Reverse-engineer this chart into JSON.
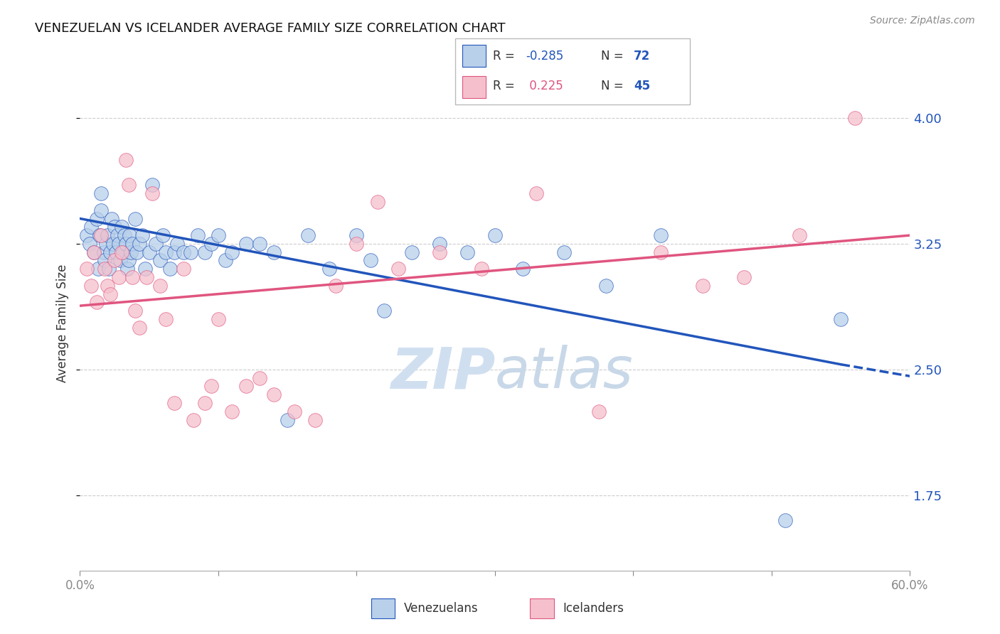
{
  "title": "VENEZUELAN VS ICELANDER AVERAGE FAMILY SIZE CORRELATION CHART",
  "source": "Source: ZipAtlas.com",
  "ylabel": "Average Family Size",
  "yticks": [
    1.75,
    2.5,
    3.25,
    4.0
  ],
  "ytick_labels": [
    "1.75",
    "2.50",
    "3.25",
    "4.00"
  ],
  "xmin": 0.0,
  "xmax": 0.6,
  "ymin": 1.3,
  "ymax": 4.25,
  "legend_blue_r": "-0.285",
  "legend_blue_n": "72",
  "legend_pink_r": "0.225",
  "legend_pink_n": "45",
  "blue_scatter_color": "#b8d0ea",
  "blue_line_color": "#2255bb",
  "pink_scatter_color": "#f5c0cc",
  "pink_line_color": "#e05580",
  "blue_r_color": "#2255bb",
  "pink_r_color": "#e05580",
  "n_color": "#2255bb",
  "ytick_color": "#2255bb",
  "watermark_color": "#d0dff0",
  "venezuelan_x": [
    0.005,
    0.007,
    0.008,
    0.01,
    0.012,
    0.013,
    0.014,
    0.015,
    0.015,
    0.017,
    0.018,
    0.019,
    0.02,
    0.021,
    0.022,
    0.023,
    0.024,
    0.025,
    0.026,
    0.027,
    0.028,
    0.029,
    0.03,
    0.031,
    0.032,
    0.033,
    0.034,
    0.035,
    0.036,
    0.037,
    0.038,
    0.04,
    0.041,
    0.043,
    0.045,
    0.047,
    0.05,
    0.052,
    0.055,
    0.058,
    0.06,
    0.062,
    0.065,
    0.068,
    0.07,
    0.075,
    0.08,
    0.085,
    0.09,
    0.095,
    0.1,
    0.105,
    0.11,
    0.12,
    0.13,
    0.14,
    0.15,
    0.165,
    0.18,
    0.2,
    0.21,
    0.22,
    0.24,
    0.26,
    0.28,
    0.3,
    0.32,
    0.35,
    0.38,
    0.42,
    0.51,
    0.55
  ],
  "venezuelan_y": [
    3.3,
    3.25,
    3.35,
    3.2,
    3.4,
    3.1,
    3.3,
    3.45,
    3.55,
    3.2,
    3.15,
    3.25,
    3.3,
    3.1,
    3.2,
    3.4,
    3.25,
    3.35,
    3.2,
    3.3,
    3.25,
    3.15,
    3.35,
    3.2,
    3.3,
    3.25,
    3.1,
    3.15,
    3.3,
    3.2,
    3.25,
    3.4,
    3.2,
    3.25,
    3.3,
    3.1,
    3.2,
    3.6,
    3.25,
    3.15,
    3.3,
    3.2,
    3.1,
    3.2,
    3.25,
    3.2,
    3.2,
    3.3,
    3.2,
    3.25,
    3.3,
    3.15,
    3.2,
    3.25,
    3.25,
    3.2,
    2.2,
    3.3,
    3.1,
    3.3,
    3.15,
    2.85,
    3.2,
    3.25,
    3.2,
    3.3,
    3.1,
    3.2,
    3.0,
    3.3,
    1.6,
    2.8
  ],
  "icelander_x": [
    0.005,
    0.008,
    0.01,
    0.012,
    0.015,
    0.018,
    0.02,
    0.022,
    0.025,
    0.028,
    0.03,
    0.033,
    0.035,
    0.038,
    0.04,
    0.043,
    0.048,
    0.052,
    0.058,
    0.062,
    0.068,
    0.075,
    0.082,
    0.09,
    0.095,
    0.1,
    0.11,
    0.12,
    0.13,
    0.14,
    0.155,
    0.17,
    0.185,
    0.2,
    0.215,
    0.23,
    0.26,
    0.29,
    0.33,
    0.375,
    0.42,
    0.45,
    0.48,
    0.52,
    0.56
  ],
  "icelander_y": [
    3.1,
    3.0,
    3.2,
    2.9,
    3.3,
    3.1,
    3.0,
    2.95,
    3.15,
    3.05,
    3.2,
    3.75,
    3.6,
    3.05,
    2.85,
    2.75,
    3.05,
    3.55,
    3.0,
    2.8,
    2.3,
    3.1,
    2.2,
    2.3,
    2.4,
    2.8,
    2.25,
    2.4,
    2.45,
    2.35,
    2.25,
    2.2,
    3.0,
    3.25,
    3.5,
    3.1,
    3.2,
    3.1,
    3.55,
    2.25,
    3.2,
    3.0,
    3.05,
    3.3,
    4.0
  ]
}
